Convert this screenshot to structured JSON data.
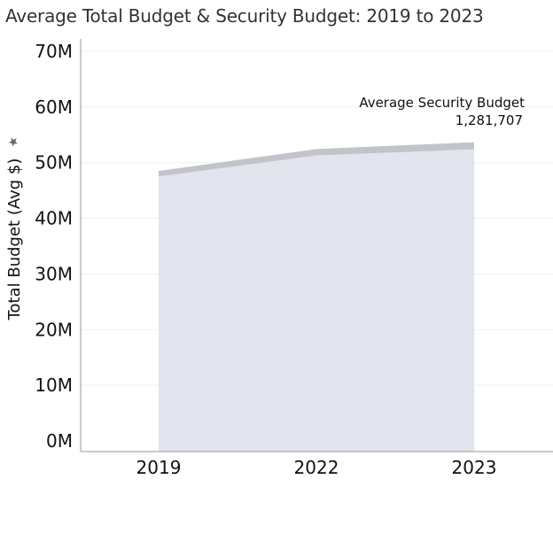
{
  "chart_data": {
    "type": "area",
    "title": "Average Total Budget & Security Budget: 2019 to 2023",
    "ylabel": "Total Budget (Avg $)",
    "xlabel": "",
    "categories": [
      "2019",
      "2022",
      "2023"
    ],
    "ylim": [
      0,
      70000000
    ],
    "y_ticks": [
      {
        "value": 0,
        "label": "0M"
      },
      {
        "value": 10000000,
        "label": "10M"
      },
      {
        "value": 20000000,
        "label": "20M"
      },
      {
        "value": 30000000,
        "label": "30M"
      },
      {
        "value": 40000000,
        "label": "40M"
      },
      {
        "value": 50000000,
        "label": "50M"
      },
      {
        "value": 60000000,
        "label": "60M"
      },
      {
        "value": 70000000,
        "label": "70M"
      }
    ],
    "stacked": true,
    "series": [
      {
        "name": "Average Total Budget",
        "values": [
          47500000,
          51300000,
          52400000
        ],
        "color": "#e2e5ee"
      },
      {
        "name": "Average Security Budget",
        "values": [
          1000000,
          1150000,
          1281707
        ],
        "color": "#c2c4c9"
      }
    ],
    "annotation": {
      "label": "Average Security Budget",
      "value_text": "1,281,707"
    },
    "grid": true,
    "pin_icon": "pin-icon"
  }
}
